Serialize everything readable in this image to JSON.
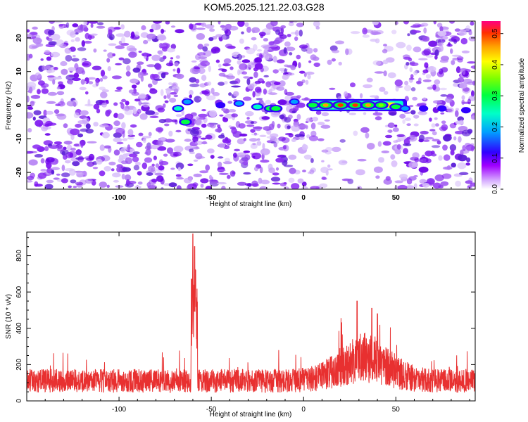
{
  "page": {
    "title": "KOM5.2025.121.22.03.G28"
  },
  "chart_data": [
    {
      "type": "heatmap",
      "xlabel": "Height of straight line (km)",
      "ylabel": "Frequency (Hz)",
      "xlim": [
        -150,
        93
      ],
      "ylim": [
        -25,
        25
      ],
      "xticks": [
        -100,
        -50,
        0,
        50
      ],
      "yticks": [
        -20,
        -10,
        0,
        10,
        20
      ],
      "colorbar": {
        "label": "Normalized spectral amplitude",
        "range": [
          0.0,
          0.54
        ],
        "ticks": [
          0.0,
          0.1,
          0.2,
          0.3,
          0.4,
          0.5
        ],
        "colors": [
          "#ffffff",
          "#a000ff",
          "#3000ff",
          "#00a0ff",
          "#00ffc8",
          "#00ff40",
          "#80ff00",
          "#ffff00",
          "#ffa000",
          "#ff3000",
          "#ff0080"
        ]
      },
      "ridge": [
        {
          "x": -68,
          "y": -1,
          "amp": 0.25
        },
        {
          "x": -64,
          "y": -5,
          "amp": 0.3
        },
        {
          "x": -63,
          "y": 1,
          "amp": 0.22
        },
        {
          "x": -45,
          "y": 0,
          "amp": 0.14
        },
        {
          "x": -35,
          "y": 0.5,
          "amp": 0.2
        },
        {
          "x": -25,
          "y": -0.5,
          "amp": 0.28
        },
        {
          "x": -18,
          "y": -1,
          "amp": 0.3
        },
        {
          "x": -15,
          "y": -1,
          "amp": 0.32
        },
        {
          "x": -5,
          "y": 1,
          "amp": 0.18
        },
        {
          "x": 5,
          "y": 0,
          "amp": 0.3
        },
        {
          "x": 12,
          "y": 0,
          "amp": 0.47
        },
        {
          "x": 20,
          "y": 0,
          "amp": 0.5
        },
        {
          "x": 28,
          "y": 0,
          "amp": 0.5
        },
        {
          "x": 35,
          "y": 0,
          "amp": 0.48
        },
        {
          "x": 42,
          "y": 0,
          "amp": 0.4
        },
        {
          "x": 50,
          "y": -0.5,
          "amp": 0.3
        },
        {
          "x": 55,
          "y": -1,
          "amp": 0.2
        },
        {
          "x": 65,
          "y": -1,
          "amp": 0.12
        },
        {
          "x": 75,
          "y": -1,
          "amp": 0.12
        },
        {
          "x": 88,
          "y": -1.5,
          "amp": 0.14
        }
      ]
    },
    {
      "type": "line",
      "xlabel": "Height of straight line (km)",
      "ylabel": "SNR (10 * v/v)",
      "xlim": [
        -150,
        93
      ],
      "ylim": [
        0,
        930
      ],
      "xticks": [
        -100,
        -50,
        0,
        50
      ],
      "yticks": [
        0,
        200,
        400,
        600,
        800
      ],
      "color": "#e83030",
      "peaks": [
        {
          "x": -60,
          "y": 920
        },
        {
          "x": -59,
          "y": 850
        },
        {
          "x": -58.5,
          "y": 720
        },
        {
          "x": 29,
          "y": 550
        },
        {
          "x": 37,
          "y": 510
        },
        {
          "x": 40,
          "y": 480
        }
      ],
      "baseline": 130
    }
  ]
}
